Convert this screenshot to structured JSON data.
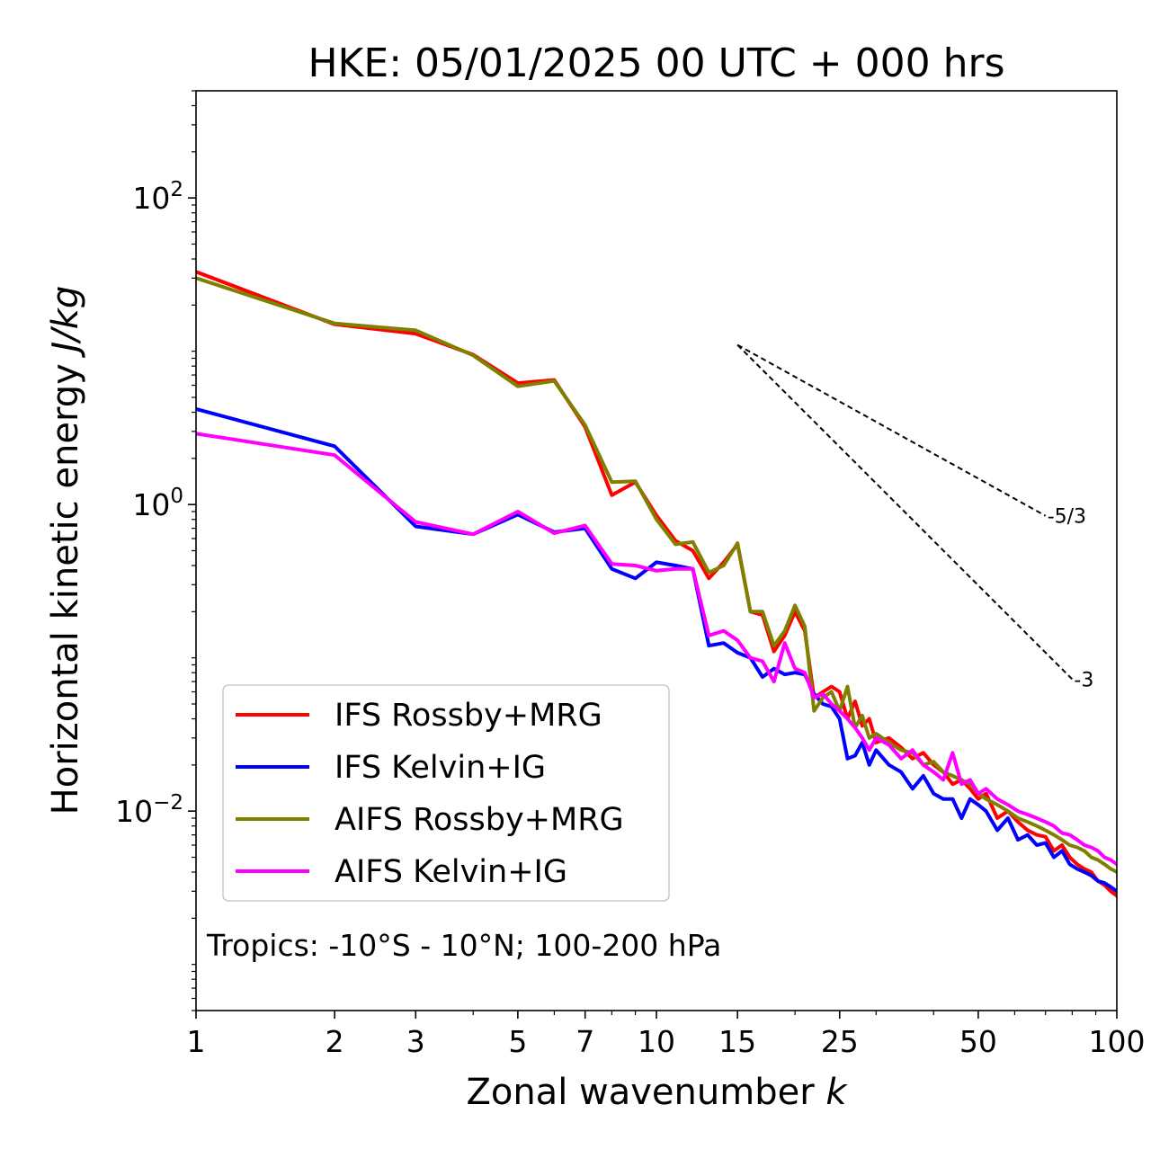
{
  "chart_data": {
    "type": "line",
    "title": "HKE: 05/01/2025 00 UTC + 000 hrs",
    "xlabel": "Zonal wavenumber",
    "xlabel_var": "k",
    "ylabel": "Horizontal kinetic energy",
    "ylabel_units": "J/kg",
    "xscale": "log",
    "yscale": "log",
    "xlim": [
      1,
      100
    ],
    "ylim": [
      0.0005,
      500
    ],
    "xticks": [
      1,
      2,
      3,
      5,
      7,
      10,
      15,
      25,
      50,
      100
    ],
    "xtick_labels": [
      "1",
      "2",
      "3",
      "5",
      "7",
      "10",
      "15",
      "25",
      "50",
      "100"
    ],
    "yticks": [
      {
        "value": 100,
        "base": "10",
        "exp": "2"
      },
      {
        "value": 1,
        "base": "10",
        "exp": "0"
      },
      {
        "value": 0.01,
        "base": "10",
        "exp": "−2"
      }
    ],
    "grid": false,
    "legend_position": "lower-left",
    "annotation": "Tropics: -10°S - 10°N; 100-200 hPa",
    "reference_lines": [
      {
        "label": "-5/3",
        "slope": -1.6667,
        "x0": 15,
        "y0": 11,
        "x1": 70
      },
      {
        "label": "-3",
        "slope": -3,
        "x0": 15,
        "y0": 11,
        "x1": 80
      }
    ],
    "series": [
      {
        "name": "IFS Rossby+MRG",
        "color": "#ff0000",
        "x": [
          1,
          2,
          3,
          4,
          5,
          6,
          7,
          8,
          9,
          10,
          11,
          12,
          13,
          14,
          15,
          16,
          17,
          18,
          19,
          20,
          21,
          22,
          23,
          24,
          25,
          26,
          27,
          28,
          29,
          30,
          32,
          34,
          36,
          38,
          40,
          42,
          44,
          46,
          48,
          50,
          52,
          55,
          58,
          61,
          64,
          67,
          70,
          73,
          76,
          79,
          82,
          85,
          88,
          91,
          94,
          97,
          100
        ],
        "y": [
          33,
          15,
          13,
          9.5,
          6.2,
          6.5,
          3.2,
          1.15,
          1.4,
          0.85,
          0.58,
          0.5,
          0.33,
          0.42,
          0.55,
          0.2,
          0.19,
          0.11,
          0.14,
          0.2,
          0.15,
          0.055,
          0.06,
          0.065,
          0.06,
          0.04,
          0.052,
          0.036,
          0.04,
          0.028,
          0.03,
          0.026,
          0.022,
          0.024,
          0.02,
          0.018,
          0.015,
          0.016,
          0.014,
          0.012,
          0.013,
          0.009,
          0.01,
          0.0085,
          0.0075,
          0.007,
          0.0068,
          0.0055,
          0.006,
          0.005,
          0.0045,
          0.0042,
          0.004,
          0.0035,
          0.0033,
          0.003,
          0.0028
        ]
      },
      {
        "name": "IFS Kelvin+IG",
        "color": "#0000ff",
        "x": [
          1,
          2,
          3,
          4,
          5,
          6,
          7,
          8,
          9,
          10,
          11,
          12,
          13,
          14,
          15,
          16,
          17,
          18,
          19,
          20,
          21,
          22,
          23,
          24,
          25,
          26,
          27,
          28,
          29,
          30,
          32,
          34,
          36,
          38,
          40,
          42,
          44,
          46,
          48,
          50,
          52,
          55,
          58,
          61,
          64,
          67,
          70,
          73,
          76,
          79,
          82,
          85,
          88,
          91,
          94,
          97,
          100
        ],
        "y": [
          4.2,
          2.4,
          0.72,
          0.64,
          0.86,
          0.66,
          0.7,
          0.38,
          0.33,
          0.42,
          0.4,
          0.38,
          0.12,
          0.125,
          0.108,
          0.1,
          0.075,
          0.085,
          0.078,
          0.08,
          0.078,
          0.058,
          0.05,
          0.048,
          0.04,
          0.022,
          0.023,
          0.028,
          0.02,
          0.025,
          0.02,
          0.018,
          0.014,
          0.017,
          0.013,
          0.012,
          0.012,
          0.009,
          0.012,
          0.011,
          0.01,
          0.0075,
          0.009,
          0.0065,
          0.007,
          0.006,
          0.0062,
          0.005,
          0.0055,
          0.0045,
          0.0042,
          0.004,
          0.0038,
          0.0035,
          0.0034,
          0.0032,
          0.003
        ]
      },
      {
        "name": "AIFS Rossby+MRG",
        "color": "#808000",
        "x": [
          1,
          2,
          3,
          4,
          5,
          6,
          7,
          8,
          9,
          10,
          11,
          12,
          13,
          14,
          15,
          16,
          17,
          18,
          19,
          20,
          21,
          22,
          23,
          24,
          25,
          26,
          27,
          28,
          29,
          30,
          32,
          34,
          36,
          38,
          40,
          42,
          44,
          46,
          48,
          50,
          52,
          55,
          58,
          61,
          64,
          67,
          70,
          73,
          76,
          79,
          82,
          85,
          88,
          91,
          94,
          97,
          100
        ],
        "y": [
          30,
          15.2,
          13.7,
          9.4,
          5.9,
          6.4,
          3.3,
          1.4,
          1.42,
          0.8,
          0.55,
          0.57,
          0.36,
          0.4,
          0.56,
          0.2,
          0.2,
          0.12,
          0.15,
          0.22,
          0.16,
          0.045,
          0.055,
          0.06,
          0.045,
          0.065,
          0.035,
          0.042,
          0.03,
          0.032,
          0.028,
          0.025,
          0.024,
          0.02,
          0.021,
          0.018,
          0.017,
          0.016,
          0.015,
          0.013,
          0.012,
          0.011,
          0.01,
          0.009,
          0.0085,
          0.008,
          0.0075,
          0.007,
          0.0065,
          0.006,
          0.0058,
          0.0055,
          0.005,
          0.0048,
          0.0045,
          0.0042,
          0.004
        ]
      },
      {
        "name": "AIFS Kelvin+IG",
        "color": "#ff00ff",
        "x": [
          1,
          2,
          3,
          4,
          5,
          6,
          7,
          8,
          9,
          10,
          11,
          12,
          13,
          14,
          15,
          16,
          17,
          18,
          19,
          20,
          21,
          22,
          23,
          24,
          25,
          26,
          27,
          28,
          29,
          30,
          32,
          34,
          36,
          38,
          40,
          42,
          44,
          46,
          48,
          50,
          52,
          55,
          58,
          61,
          64,
          67,
          70,
          73,
          76,
          79,
          82,
          85,
          88,
          91,
          94,
          97,
          100
        ],
        "y": [
          2.9,
          2.1,
          0.77,
          0.64,
          0.9,
          0.65,
          0.73,
          0.41,
          0.4,
          0.37,
          0.38,
          0.38,
          0.14,
          0.15,
          0.13,
          0.1,
          0.095,
          0.07,
          0.125,
          0.085,
          0.08,
          0.055,
          0.058,
          0.05,
          0.045,
          0.04,
          0.035,
          0.03,
          0.025,
          0.03,
          0.027,
          0.022,
          0.025,
          0.02,
          0.018,
          0.016,
          0.024,
          0.015,
          0.016,
          0.013,
          0.014,
          0.012,
          0.011,
          0.01,
          0.0095,
          0.009,
          0.0085,
          0.008,
          0.0072,
          0.007,
          0.0065,
          0.006,
          0.0058,
          0.0055,
          0.005,
          0.0048,
          0.0045
        ]
      }
    ]
  }
}
